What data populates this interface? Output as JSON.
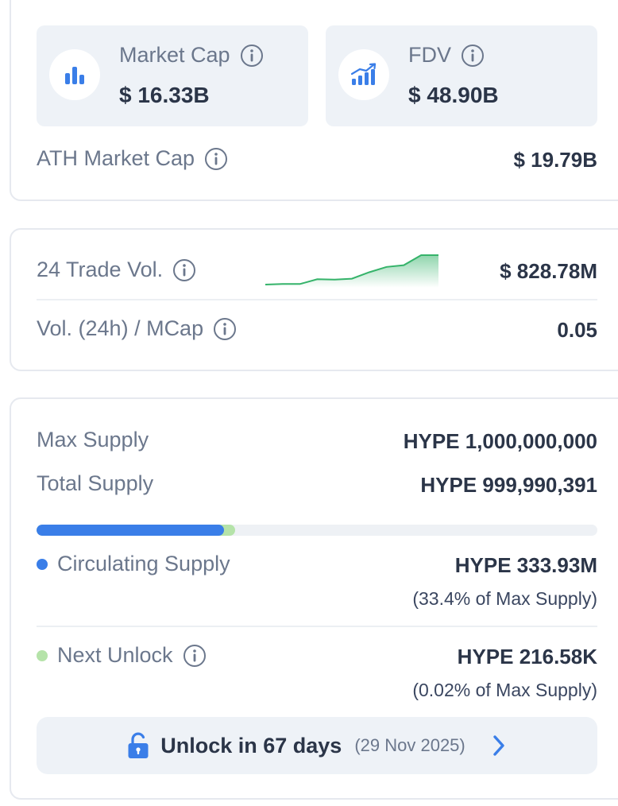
{
  "market": {
    "market_cap": {
      "label": "Market Cap",
      "value": "$ 16.33B",
      "icon": "bar-chart-icon"
    },
    "fdv": {
      "label": "FDV",
      "value": "$ 48.90B",
      "icon": "trending-chart-icon"
    },
    "ath_market_cap": {
      "label": "ATH Market Cap",
      "value": "$ 19.79B"
    }
  },
  "volume": {
    "trade_vol": {
      "label": "24 Trade Vol.",
      "value": "$ 828.78M",
      "sparkline": [
        0,
        0.02,
        0.02,
        0.18,
        0.17,
        0.2,
        0.42,
        0.6,
        0.66,
        1.0,
        1.0
      ]
    },
    "vol_mcap": {
      "label": "Vol. (24h) / MCap",
      "value": "0.05"
    }
  },
  "supply": {
    "max_supply": {
      "label": "Max Supply",
      "value": "HYPE 1,000,000,000"
    },
    "total_supply": {
      "label": "Total Supply",
      "value": "HYPE 999,990,391"
    },
    "progress": {
      "circulating_fraction": 0.334,
      "next_unlock_fraction": 0.354
    },
    "circulating": {
      "label": "Circulating Supply",
      "value": "HYPE 333.93M",
      "sub": "(33.4% of Max Supply)"
    },
    "next_unlock": {
      "label": "Next Unlock",
      "value": "HYPE 216.58K",
      "sub": "(0.02% of Max Supply)"
    },
    "unlock_button": {
      "label": "Unlock in 67 days",
      "date": "(29 Nov 2025)"
    }
  },
  "colors": {
    "accent_blue": "#3a7ee8",
    "unlock_green": "#b5e3a9",
    "sparkline_green": "#35b36a"
  }
}
